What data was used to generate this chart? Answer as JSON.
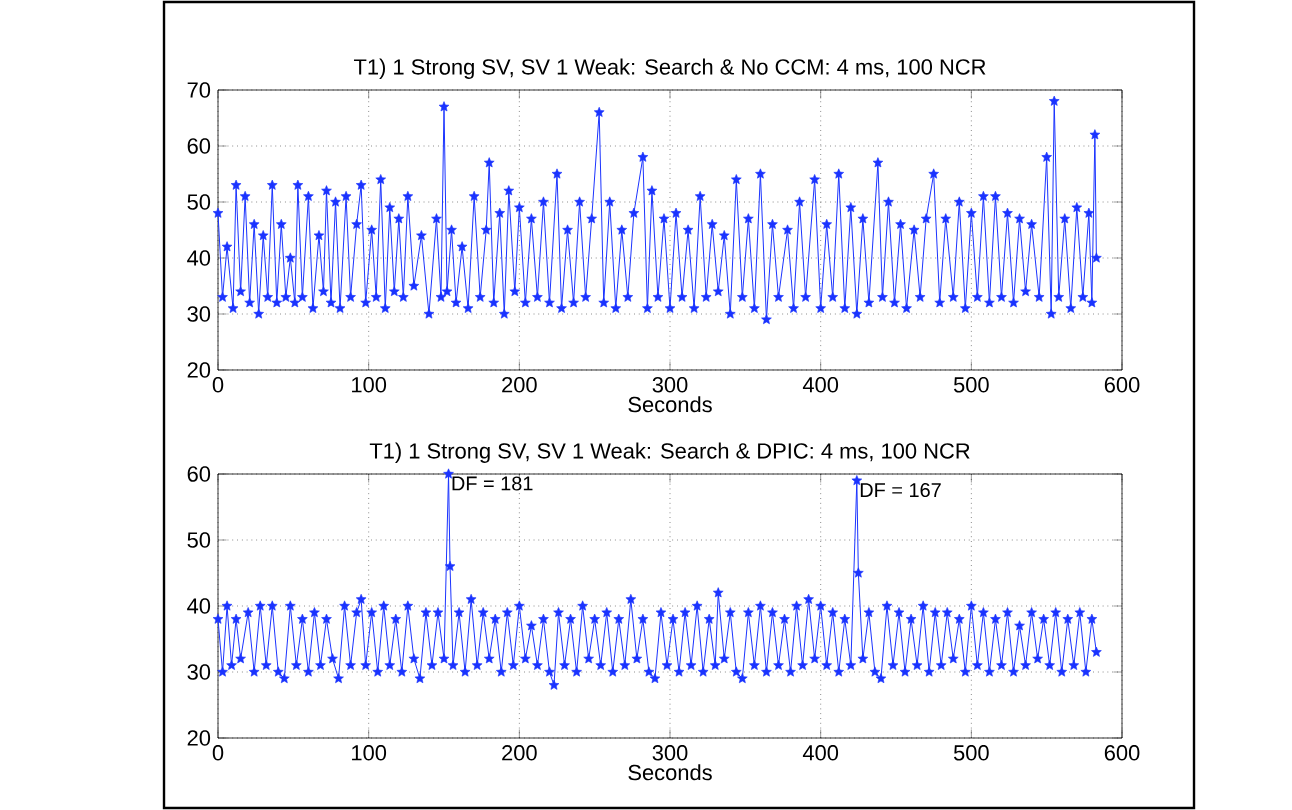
{
  "chart_data": [
    {
      "type": "line",
      "title": "T1) 1 Strong SV, SV 1 Weak: Search & No CCM: 4 ms, 100 NCR",
      "xlabel": "Seconds",
      "color": "#1a33ff",
      "marker": "star",
      "grid": true,
      "xlim": [
        0,
        600
      ],
      "ylim": [
        20,
        70
      ],
      "xticks": [
        0,
        100,
        200,
        300,
        400,
        500,
        600
      ],
      "yticks": [
        20,
        30,
        40,
        50,
        60,
        70
      ],
      "x": [
        0,
        3,
        6,
        10,
        12,
        15,
        18,
        21,
        24,
        27,
        30,
        33,
        36,
        39,
        42,
        45,
        48,
        51,
        53,
        56,
        60,
        63,
        67,
        70,
        72,
        75,
        78,
        81,
        85,
        88,
        92,
        95,
        98,
        102,
        105,
        108,
        111,
        114,
        117,
        120,
        123,
        126,
        130,
        135,
        140,
        145,
        148,
        150,
        152,
        155,
        158,
        162,
        166,
        170,
        174,
        178,
        180,
        183,
        187,
        190,
        193,
        197,
        200,
        204,
        208,
        212,
        216,
        220,
        225,
        228,
        232,
        236,
        240,
        244,
        248,
        253,
        256,
        260,
        264,
        268,
        272,
        276,
        282,
        285,
        288,
        292,
        296,
        300,
        304,
        308,
        312,
        316,
        320,
        324,
        328,
        332,
        336,
        340,
        344,
        348,
        352,
        356,
        360,
        364,
        368,
        372,
        378,
        382,
        386,
        390,
        396,
        400,
        404,
        408,
        412,
        416,
        420,
        424,
        428,
        432,
        438,
        441,
        445,
        449,
        453,
        457,
        462,
        466,
        470,
        475,
        479,
        483,
        488,
        492,
        496,
        500,
        504,
        508,
        512,
        516,
        520,
        524,
        528,
        532,
        536,
        540,
        545,
        550,
        553,
        555,
        558,
        562,
        566,
        570,
        574,
        578,
        580,
        582,
        583
      ],
      "values": [
        48,
        33,
        42,
        31,
        53,
        34,
        51,
        32,
        46,
        30,
        44,
        33,
        53,
        32,
        46,
        33,
        40,
        32,
        53,
        33,
        51,
        31,
        44,
        34,
        52,
        32,
        50,
        31,
        51,
        33,
        46,
        53,
        32,
        45,
        33,
        54,
        31,
        49,
        34,
        47,
        33,
        51,
        35,
        44,
        30,
        47,
        33,
        67,
        34,
        45,
        32,
        42,
        31,
        51,
        33,
        45,
        57,
        32,
        48,
        30,
        52,
        34,
        49,
        32,
        47,
        33,
        50,
        32,
        55,
        31,
        45,
        32,
        50,
        33,
        47,
        66,
        32,
        50,
        31,
        45,
        33,
        48,
        58,
        31,
        52,
        33,
        47,
        31,
        48,
        33,
        45,
        31,
        51,
        33,
        46,
        34,
        44,
        30,
        54,
        33,
        47,
        31,
        55,
        29,
        46,
        33,
        45,
        31,
        50,
        33,
        54,
        31,
        46,
        33,
        55,
        31,
        49,
        30,
        47,
        32,
        57,
        33,
        50,
        32,
        46,
        31,
        45,
        33,
        47,
        55,
        32,
        47,
        33,
        50,
        31,
        48,
        33,
        51,
        32,
        51,
        33,
        48,
        32,
        47,
        34,
        46,
        33,
        58,
        30,
        68,
        33,
        47,
        31,
        49,
        33,
        48,
        32,
        62,
        40
      ]
    },
    {
      "type": "line",
      "title": "T1) 1 Strong SV, SV 1 Weak: Search & DPIC: 4 ms, 100 NCR",
      "xlabel": "Seconds",
      "color": "#1a33ff",
      "marker": "star",
      "grid": true,
      "xlim": [
        0,
        600
      ],
      "ylim": [
        20,
        60
      ],
      "xticks": [
        0,
        100,
        200,
        300,
        400,
        500,
        600
      ],
      "yticks": [
        20,
        30,
        40,
        50,
        60
      ],
      "annotations": [
        {
          "text": "DF = 181",
          "x": 153,
          "y": 60
        },
        {
          "text": "DF = 167",
          "x": 424,
          "y": 59
        }
      ],
      "x": [
        0,
        3,
        6,
        9,
        12,
        15,
        20,
        24,
        28,
        32,
        36,
        40,
        44,
        48,
        52,
        56,
        60,
        64,
        68,
        72,
        76,
        80,
        84,
        88,
        92,
        95,
        98,
        102,
        106,
        110,
        114,
        118,
        122,
        126,
        130,
        134,
        138,
        142,
        146,
        150,
        153,
        154,
        156,
        160,
        164,
        168,
        172,
        176,
        180,
        184,
        188,
        192,
        196,
        200,
        204,
        208,
        212,
        216,
        220,
        223,
        226,
        230,
        234,
        238,
        242,
        246,
        250,
        254,
        258,
        262,
        266,
        270,
        274,
        278,
        282,
        286,
        290,
        294,
        298,
        302,
        306,
        310,
        314,
        318,
        322,
        326,
        330,
        332,
        336,
        340,
        344,
        348,
        352,
        356,
        360,
        364,
        368,
        372,
        376,
        380,
        384,
        388,
        392,
        396,
        400,
        404,
        408,
        412,
        416,
        420,
        424,
        425,
        428,
        432,
        436,
        440,
        444,
        448,
        452,
        456,
        460,
        464,
        468,
        472,
        476,
        480,
        484,
        488,
        492,
        496,
        500,
        504,
        508,
        512,
        516,
        520,
        524,
        528,
        532,
        536,
        540,
        544,
        548,
        552,
        556,
        560,
        564,
        568,
        572,
        576,
        580,
        583
      ],
      "values": [
        38,
        30,
        40,
        31,
        38,
        32,
        39,
        30,
        40,
        31,
        40,
        30,
        29,
        40,
        31,
        38,
        30,
        39,
        31,
        38,
        32,
        29,
        40,
        31,
        39,
        41,
        31,
        39,
        30,
        40,
        31,
        38,
        30,
        40,
        32,
        29,
        39,
        31,
        39,
        32,
        60,
        46,
        31,
        39,
        30,
        41,
        31,
        39,
        32,
        38,
        30,
        39,
        31,
        40,
        32,
        37,
        31,
        38,
        30,
        28,
        39,
        31,
        38,
        30,
        40,
        32,
        38,
        31,
        39,
        30,
        38,
        31,
        41,
        32,
        38,
        30,
        29,
        39,
        31,
        38,
        30,
        39,
        31,
        40,
        30,
        38,
        31,
        42,
        32,
        39,
        30,
        29,
        39,
        31,
        40,
        30,
        39,
        31,
        38,
        30,
        40,
        31,
        41,
        32,
        40,
        31,
        39,
        30,
        38,
        31,
        59,
        45,
        32,
        39,
        30,
        29,
        40,
        31,
        39,
        30,
        38,
        31,
        40,
        30,
        39,
        31,
        39,
        32,
        38,
        30,
        40,
        31,
        39,
        30,
        38,
        31,
        39,
        30,
        37,
        31,
        39,
        32,
        38,
        31,
        39,
        30,
        38,
        31,
        39,
        30,
        38,
        33
      ]
    }
  ]
}
